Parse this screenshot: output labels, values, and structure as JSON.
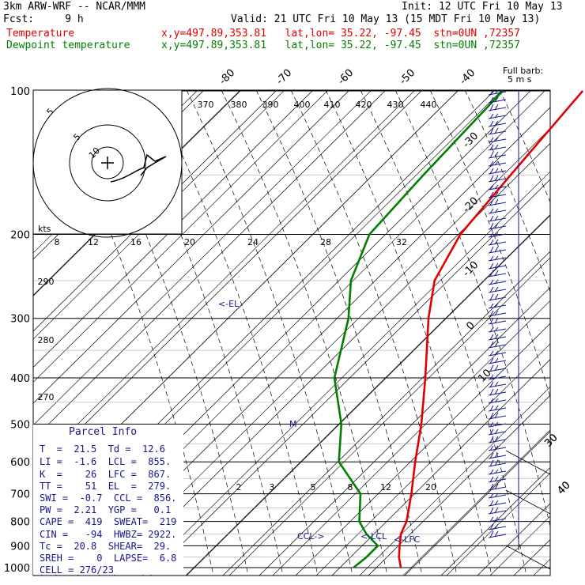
{
  "header": {
    "line1_left": "3km ARW-WRF -- NCAR/MMM",
    "line1_right": "Init: 12 UTC Fri 10 May 13",
    "line2_left": "Fcst:     9 h",
    "line2_right": "Valid: 21 UTC Fri 10 May 13 (15 MDT Fri 10 May 13)",
    "temp_label": "Temperature",
    "dew_label": "Dewpoint temperature",
    "temp_info": "x,y=497.89,353.81   lat,lon= 35.22, -97.45  stn=0UN ,72357",
    "dew_info": "x,y=497.89,353.81   lat,lon= 35.22, -97.45  stn=0UN ,72357"
  },
  "colors": {
    "temperature": "#e00000",
    "dewpoint": "#008000",
    "barb": "#16168a",
    "panel_text": "#16168a"
  },
  "chart_data": {
    "type": "skew-t log-p sounding",
    "pressure_levels": [
      100,
      200,
      300,
      400,
      500,
      600,
      700,
      800,
      900,
      1000
    ],
    "pressure_labels": [
      "100",
      "200",
      "300",
      "400",
      "500",
      "600",
      "700",
      "800",
      "900",
      "1000"
    ],
    "isotherm_labels": [
      "-80",
      "-70",
      "-60",
      "-50",
      "-40",
      "-30",
      "-20",
      "-10",
      "0",
      "10",
      "30",
      "40"
    ],
    "theta_labels": [
      "370",
      "380",
      "390",
      "400",
      "410",
      "420",
      "430",
      "440",
      "290",
      "280",
      "270"
    ],
    "mixing_ratio_labels": [
      "2",
      "3",
      "5",
      "8",
      "12",
      "20"
    ],
    "temperature_profile": [
      {
        "p": 1000,
        "t": 25.0
      },
      {
        "p": 950,
        "t": 21.5
      },
      {
        "p": 900,
        "t": 18.5
      },
      {
        "p": 850,
        "t": 15.5
      },
      {
        "p": 800,
        "t": 13.5
      },
      {
        "p": 700,
        "t": 7.0
      },
      {
        "p": 600,
        "t": -1.0
      },
      {
        "p": 500,
        "t": -10.0
      },
      {
        "p": 400,
        "t": -22.0
      },
      {
        "p": 300,
        "t": -38.0
      },
      {
        "p": 250,
        "t": -47.0
      },
      {
        "p": 200,
        "t": -53.0
      },
      {
        "p": 150,
        "t": -56.0
      },
      {
        "p": 100,
        "t": -60.0
      }
    ],
    "dewpoint_profile": [
      {
        "p": 1000,
        "t": 12.0
      },
      {
        "p": 950,
        "t": 12.6
      },
      {
        "p": 900,
        "t": 12.5
      },
      {
        "p": 850,
        "t": 6.0
      },
      {
        "p": 800,
        "t": 0.5
      },
      {
        "p": 700,
        "t": -7.0
      },
      {
        "p": 600,
        "t": -22.0
      },
      {
        "p": 500,
        "t": -32.0
      },
      {
        "p": 400,
        "t": -47.0
      },
      {
        "p": 300,
        "t": -60.0
      },
      {
        "p": 250,
        "t": -70.0
      },
      {
        "p": 200,
        "t": -78.0
      },
      {
        "p": 150,
        "t": -80.0
      },
      {
        "p": 100,
        "t": -82.0
      }
    ],
    "markers": [
      "<-EL",
      "CCL->",
      "<-LCL",
      "<-LFC",
      "M"
    ],
    "hodograph": {
      "ring_labels": [
        "5",
        "10",
        "5"
      ],
      "speed_axis_label": "kts",
      "speed_ticks": [
        "8",
        "12",
        "16",
        "20",
        "24",
        "28",
        "32"
      ]
    },
    "wind_barb_scale_label": "Full barb:",
    "wind_barb_scale_units": "5 m s",
    "wind_axis_labels": [
      "30",
      "40"
    ]
  },
  "parcel_info": {
    "title": "Parcel Info",
    "rows": [
      "T  =  21.5  Td =  12.6",
      "LI =  -1.6  LCL =  855.",
      "K  =    26  LFC =  867.",
      "TT =    51  EL  =  279.",
      "SWI =  -0.7  CCL =  856.",
      "PW =  2.21  YGP =   0.1",
      "CAPE =  419  SWEAT=  219",
      "CIN =   -94  HWBZ= 2922.",
      "Tc =  20.8  SHEAR=  29.",
      "SREH =    0  LAPSE=  6.8",
      "CELL = 276/23"
    ]
  }
}
